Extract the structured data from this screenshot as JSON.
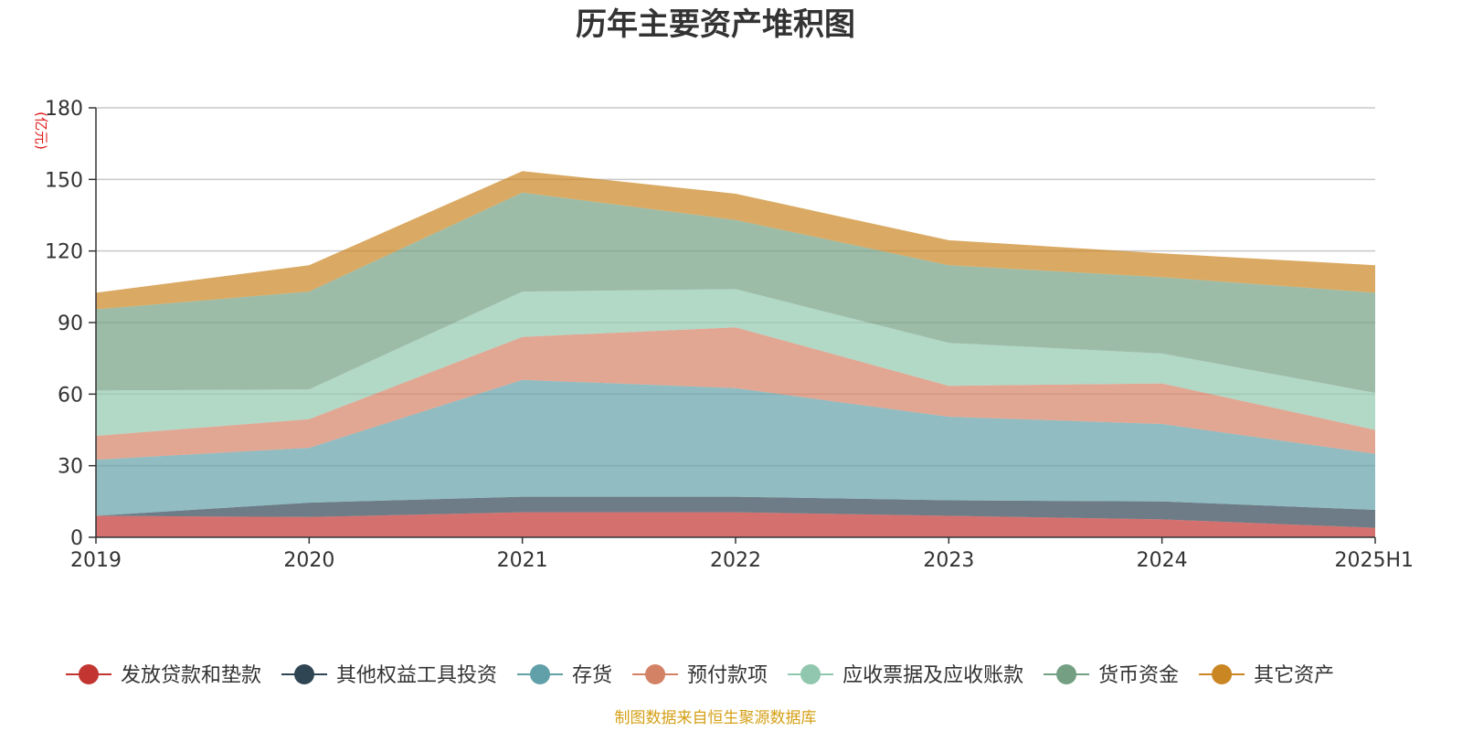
{
  "chart_data": {
    "type": "area",
    "stacked": true,
    "title": "历年主要资产堆积图",
    "unit": "(亿元)",
    "x": [
      "2019",
      "2020",
      "2021",
      "2022",
      "2023",
      "2024",
      "2025H1"
    ],
    "ylim": [
      0,
      180
    ],
    "yticks": [
      "0",
      "30",
      "60",
      "90",
      "120",
      "150",
      "180"
    ],
    "grid": true,
    "legend_position": "bottom",
    "series": [
      {
        "name": "发放贷款和垫款",
        "color": "#c23531",
        "values": [
          9,
          8.5,
          10.5,
          10.5,
          9,
          7.5,
          4
        ]
      },
      {
        "name": "其他权益工具投资",
        "color": "#2f4554",
        "values": [
          0,
          6,
          6.5,
          6.5,
          6.5,
          7.5,
          7.5
        ]
      },
      {
        "name": "存货",
        "color": "#61a0a8",
        "values": [
          23.5,
          23,
          49,
          45.5,
          35,
          32.5,
          23.5
        ]
      },
      {
        "name": "预付款项",
        "color": "#d48265",
        "values": [
          10,
          12,
          18,
          25.5,
          13,
          17,
          10
        ]
      },
      {
        "name": "应收票据及应收账款",
        "color": "#91c7ae",
        "values": [
          19,
          12.5,
          19,
          16,
          18,
          12.5,
          15.5
        ]
      },
      {
        "name": "货币资金",
        "color": "#749f83",
        "values": [
          34,
          41,
          41.5,
          29,
          32.5,
          32,
          42
        ]
      },
      {
        "name": "其它资产",
        "color": "#ca8622",
        "values": [
          7,
          11,
          9,
          11,
          10.5,
          10,
          11.5
        ]
      }
    ]
  },
  "source_note": "制图数据来自恒生聚源数据库"
}
